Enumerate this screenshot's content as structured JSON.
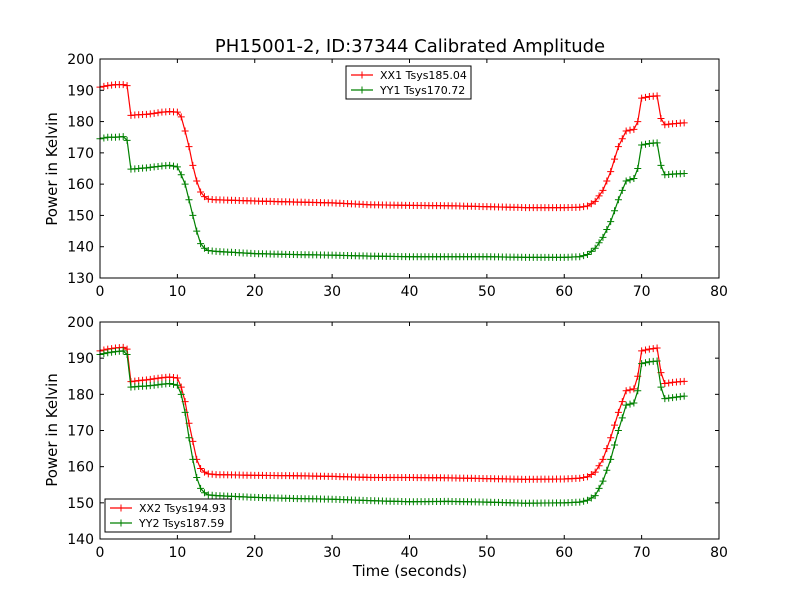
{
  "chart_data": [
    {
      "type": "line",
      "title": "PH15001-2, ID:37344 Calibrated Amplitude",
      "xlabel": "",
      "ylabel": "Power in Kelvin",
      "xlim": [
        0,
        80
      ],
      "ylim": [
        130,
        200
      ],
      "xticks": [
        "0",
        "10",
        "20",
        "30",
        "40",
        "50",
        "60",
        "70",
        "80"
      ],
      "yticks": [
        "130",
        "140",
        "150",
        "160",
        "170",
        "180",
        "190",
        "200"
      ],
      "grid": false,
      "legend_position": "top-center",
      "series": [
        {
          "name": "XX1 Tsys185.04",
          "color": "#ff0000",
          "points": [
            [
              0,
              191.0
            ],
            [
              1,
              191.5
            ],
            [
              2,
              191.8
            ],
            [
              3,
              191.8
            ],
            [
              3.5,
              191.5
            ],
            [
              4,
              182.0
            ],
            [
              5,
              182.2
            ],
            [
              6,
              182.3
            ],
            [
              7,
              182.6
            ],
            [
              8,
              183.0
            ],
            [
              9,
              183.2
            ],
            [
              10,
              183.0
            ],
            [
              10.5,
              181.5
            ],
            [
              11,
              177.0
            ],
            [
              11.5,
              172.0
            ],
            [
              12,
              166.0
            ],
            [
              12.5,
              161.0
            ],
            [
              13,
              157.5
            ],
            [
              13.5,
              156.0
            ],
            [
              14,
              155.2
            ],
            [
              15,
              155.0
            ],
            [
              20,
              154.6
            ],
            [
              25,
              154.3
            ],
            [
              30,
              154.0
            ],
            [
              35,
              153.4
            ],
            [
              40,
              153.2
            ],
            [
              45,
              153.1
            ],
            [
              50,
              152.8
            ],
            [
              55,
              152.5
            ],
            [
              60,
              152.5
            ],
            [
              62,
              152.6
            ],
            [
              63,
              153.0
            ],
            [
              64,
              154.5
            ],
            [
              65,
              158.0
            ],
            [
              66,
              164.0
            ],
            [
              67,
              172.0
            ],
            [
              68,
              177.0
            ],
            [
              69,
              177.5
            ],
            [
              69.5,
              180.0
            ],
            [
              70,
              187.5
            ],
            [
              71,
              188.0
            ],
            [
              72,
              188.2
            ],
            [
              72.5,
              181.0
            ],
            [
              73,
              179.0
            ],
            [
              74,
              179.3
            ],
            [
              75.5,
              179.6
            ]
          ]
        },
        {
          "name": "YY1 Tsys170.72",
          "color": "#008000",
          "points": [
            [
              0,
              174.5
            ],
            [
              1,
              175.0
            ],
            [
              2,
              175.0
            ],
            [
              3,
              175.2
            ],
            [
              3.5,
              174.0
            ],
            [
              4,
              164.8
            ],
            [
              5,
              165.0
            ],
            [
              6,
              165.2
            ],
            [
              7,
              165.5
            ],
            [
              8,
              165.8
            ],
            [
              9,
              166.0
            ],
            [
              10,
              165.5
            ],
            [
              10.5,
              163.0
            ],
            [
              11,
              160.0
            ],
            [
              11.5,
              155.0
            ],
            [
              12,
              150.0
            ],
            [
              12.5,
              145.0
            ],
            [
              13,
              141.0
            ],
            [
              13.5,
              139.5
            ],
            [
              14,
              138.8
            ],
            [
              15,
              138.5
            ],
            [
              20,
              137.8
            ],
            [
              25,
              137.5
            ],
            [
              30,
              137.3
            ],
            [
              35,
              137.0
            ],
            [
              40,
              136.8
            ],
            [
              45,
              136.8
            ],
            [
              50,
              136.8
            ],
            [
              55,
              136.6
            ],
            [
              60,
              136.6
            ],
            [
              62,
              136.8
            ],
            [
              63,
              137.5
            ],
            [
              64,
              139.5
            ],
            [
              65,
              143.0
            ],
            [
              66,
              148.0
            ],
            [
              67,
              155.0
            ],
            [
              68,
              161.0
            ],
            [
              69,
              161.8
            ],
            [
              69.5,
              165.0
            ],
            [
              70,
              172.5
            ],
            [
              71,
              173.0
            ],
            [
              72,
              173.2
            ],
            [
              72.5,
              166.0
            ],
            [
              73,
              163.0
            ],
            [
              74,
              163.2
            ],
            [
              75.5,
              163.4
            ]
          ]
        }
      ]
    },
    {
      "type": "line",
      "title": "",
      "xlabel": "Time (seconds)",
      "ylabel": "Power in Kelvin",
      "xlim": [
        0,
        80
      ],
      "ylim": [
        140,
        200
      ],
      "xticks": [
        "0",
        "10",
        "20",
        "30",
        "40",
        "50",
        "60",
        "70",
        "80"
      ],
      "yticks": [
        "140",
        "150",
        "160",
        "170",
        "180",
        "190",
        "200"
      ],
      "grid": false,
      "legend_position": "bottom-left",
      "series": [
        {
          "name": "XX2 Tsys194.93",
          "color": "#ff0000",
          "points": [
            [
              0,
              192.0
            ],
            [
              1,
              192.5
            ],
            [
              2,
              192.8
            ],
            [
              3,
              193.0
            ],
            [
              3.5,
              192.5
            ],
            [
              4,
              183.5
            ],
            [
              5,
              183.8
            ],
            [
              6,
              184.0
            ],
            [
              7,
              184.3
            ],
            [
              8,
              184.6
            ],
            [
              9,
              184.8
            ],
            [
              10,
              184.5
            ],
            [
              10.5,
              182.0
            ],
            [
              11,
              178.0
            ],
            [
              11.5,
              172.0
            ],
            [
              12,
              167.0
            ],
            [
              12.5,
              162.0
            ],
            [
              13,
              159.5
            ],
            [
              13.5,
              158.5
            ],
            [
              14,
              158.0
            ],
            [
              15,
              157.8
            ],
            [
              20,
              157.6
            ],
            [
              25,
              157.5
            ],
            [
              30,
              157.3
            ],
            [
              35,
              157.0
            ],
            [
              40,
              157.0
            ],
            [
              45,
              156.9
            ],
            [
              50,
              156.7
            ],
            [
              55,
              156.5
            ],
            [
              60,
              156.6
            ],
            [
              62,
              156.8
            ],
            [
              63,
              157.2
            ],
            [
              64,
              158.5
            ],
            [
              65,
              162.0
            ],
            [
              66,
              168.0
            ],
            [
              67,
              175.0
            ],
            [
              68,
              181.0
            ],
            [
              69,
              181.5
            ],
            [
              69.5,
              185.0
            ],
            [
              70,
              192.0
            ],
            [
              71,
              192.5
            ],
            [
              72,
              192.8
            ],
            [
              72.5,
              186.0
            ],
            [
              73,
              183.0
            ],
            [
              74,
              183.3
            ],
            [
              75.5,
              183.6
            ]
          ]
        },
        {
          "name": "YY2 Tsys187.59",
          "color": "#008000",
          "points": [
            [
              0,
              191.0
            ],
            [
              1,
              191.5
            ],
            [
              2,
              191.8
            ],
            [
              3,
              192.0
            ],
            [
              3.5,
              191.0
            ],
            [
              4,
              182.0
            ],
            [
              5,
              182.2
            ],
            [
              6,
              182.3
            ],
            [
              7,
              182.5
            ],
            [
              8,
              182.8
            ],
            [
              9,
              183.0
            ],
            [
              10,
              182.5
            ],
            [
              10.5,
              180.0
            ],
            [
              11,
              175.0
            ],
            [
              11.5,
              168.0
            ],
            [
              12,
              162.0
            ],
            [
              12.5,
              157.0
            ],
            [
              13,
              154.0
            ],
            [
              13.5,
              152.8
            ],
            [
              14,
              152.2
            ],
            [
              15,
              152.0
            ],
            [
              20,
              151.5
            ],
            [
              25,
              151.2
            ],
            [
              30,
              151.0
            ],
            [
              35,
              150.6
            ],
            [
              40,
              150.3
            ],
            [
              45,
              150.4
            ],
            [
              50,
              150.2
            ],
            [
              55,
              149.9
            ],
            [
              60,
              150.0
            ],
            [
              62,
              150.2
            ],
            [
              63,
              150.7
            ],
            [
              64,
              152.0
            ],
            [
              65,
              156.0
            ],
            [
              66,
              162.0
            ],
            [
              67,
              170.0
            ],
            [
              68,
              177.0
            ],
            [
              69,
              177.6
            ],
            [
              69.5,
              181.0
            ],
            [
              70,
              188.5
            ],
            [
              71,
              189.0
            ],
            [
              72,
              189.2
            ],
            [
              72.5,
              182.0
            ],
            [
              73,
              178.8
            ],
            [
              74,
              179.1
            ],
            [
              75.5,
              179.5
            ]
          ]
        }
      ]
    }
  ]
}
